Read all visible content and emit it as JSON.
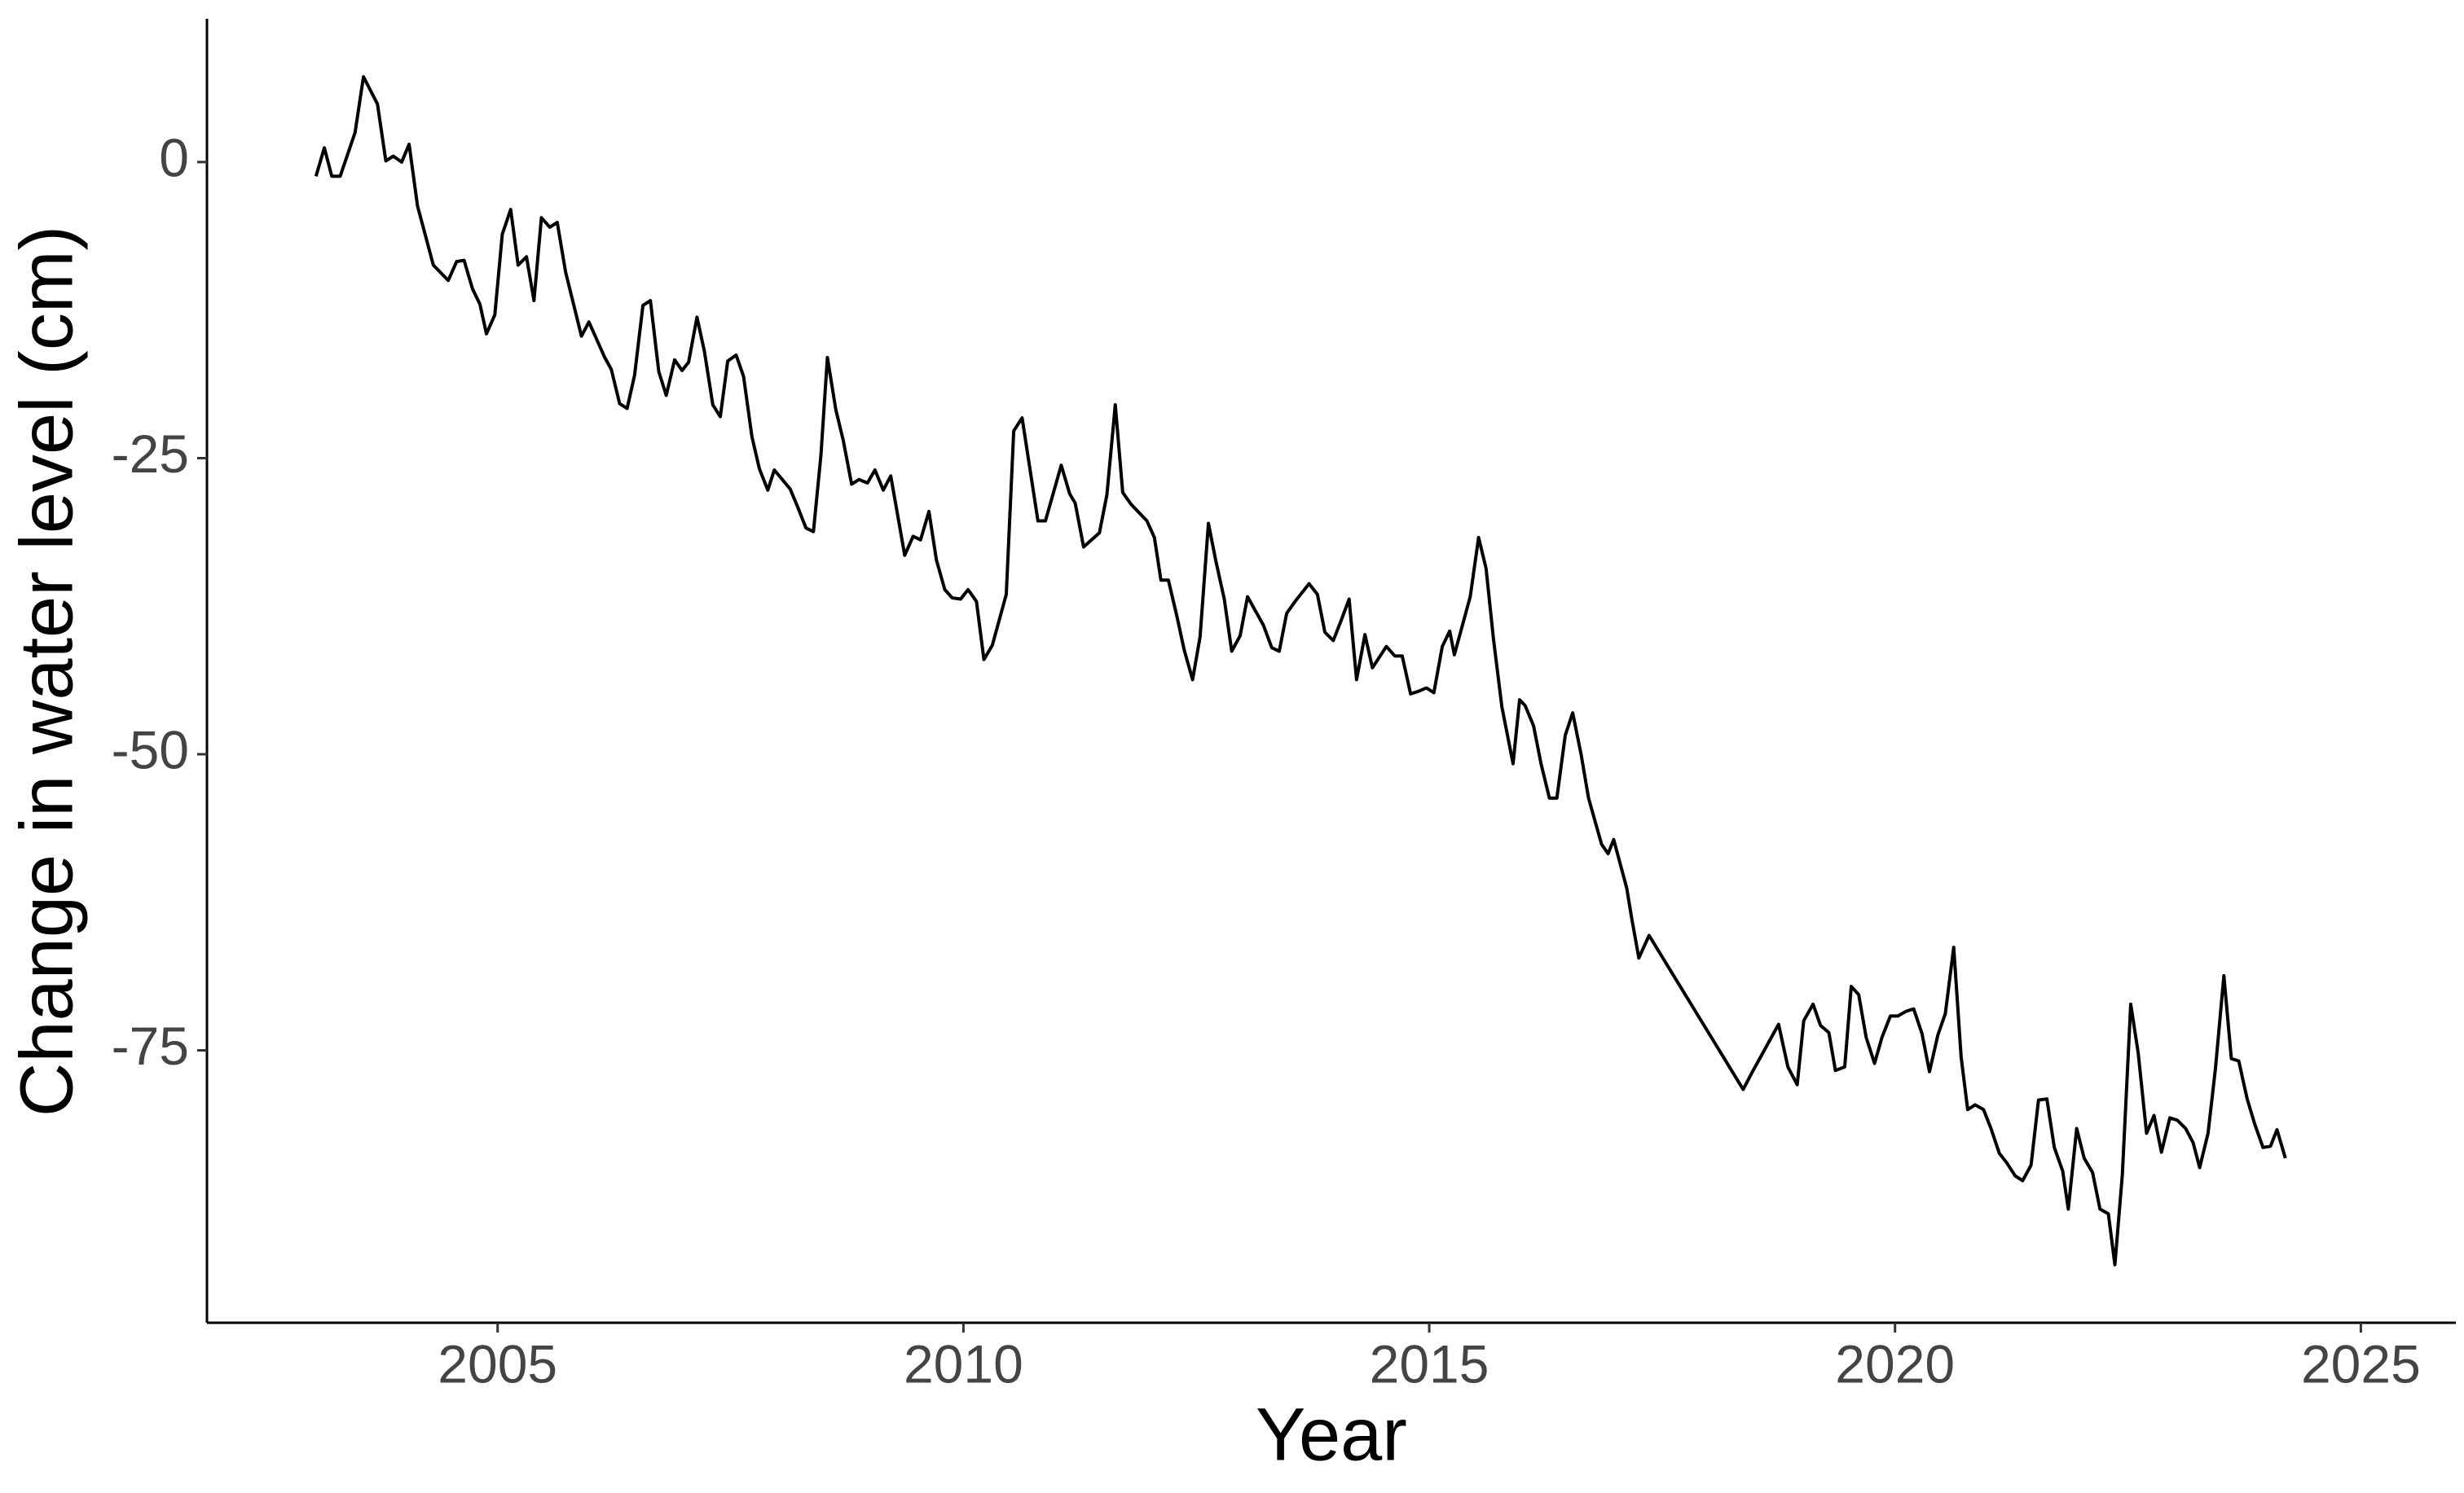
{
  "chart_data": {
    "type": "line",
    "xlabel": "Year",
    "ylabel": "Change in water level (cm)",
    "color": "#000000",
    "xlim": [
      2001.88,
      2026.02
    ],
    "ylim": [
      -98,
      12.1
    ],
    "xticks": [
      2005,
      2010,
      2015,
      2020,
      2025
    ],
    "yticks": [
      0,
      -25,
      -50,
      -75
    ],
    "grid": false,
    "x": [
      2003.05,
      2003.14,
      2003.22,
      2003.31,
      2003.47,
      2003.56,
      2003.71,
      2003.8,
      2003.88,
      2003.97,
      2004.05,
      2004.14,
      2004.31,
      2004.47,
      2004.56,
      2004.64,
      2004.73,
      2004.81,
      2004.88,
      2004.97,
      2005.05,
      2005.14,
      2005.22,
      2005.31,
      2005.39,
      2005.47,
      2005.56,
      2005.64,
      2005.73,
      2005.9,
      2005.98,
      2006.15,
      2006.22,
      2006.31,
      2006.39,
      2006.47,
      2006.56,
      2006.64,
      2006.73,
      2006.81,
      2006.9,
      2006.98,
      2007.05,
      2007.14,
      2007.22,
      2007.31,
      2007.39,
      2007.47,
      2007.56,
      2007.64,
      2007.73,
      2007.81,
      2007.9,
      2007.97,
      2008.14,
      2008.22,
      2008.31,
      2008.39,
      2008.47,
      2008.54,
      2008.63,
      2008.71,
      2008.8,
      2008.88,
      2008.97,
      2009.05,
      2009.14,
      2009.22,
      2009.37,
      2009.46,
      2009.54,
      2009.63,
      2009.71,
      2009.8,
      2009.88,
      2009.97,
      2010.05,
      2010.14,
      2010.22,
      2010.31,
      2010.46,
      2010.54,
      2010.63,
      2010.71,
      2010.8,
      2010.88,
      2011.05,
      2011.14,
      2011.2,
      2011.29,
      2011.46,
      2011.54,
      2011.63,
      2011.71,
      2011.8,
      2011.97,
      2012.05,
      2012.12,
      2012.2,
      2012.29,
      2012.37,
      2012.46,
      2012.54,
      2012.63,
      2012.71,
      2012.8,
      2012.88,
      2012.97,
      2013.05,
      2013.22,
      2013.31,
      2013.39,
      2013.47,
      2013.56,
      2013.71,
      2013.8,
      2013.88,
      2013.97,
      2014.05,
      2014.14,
      2014.22,
      2014.31,
      2014.39,
      2014.54,
      2014.63,
      2014.71,
      2014.8,
      2014.88,
      2014.97,
      2015.05,
      2015.14,
      2015.22,
      2015.27,
      2015.44,
      2015.53,
      2015.61,
      2015.69,
      2015.78,
      2015.9,
      2015.97,
      2016.03,
      2016.12,
      2016.2,
      2016.29,
      2016.37,
      2016.46,
      2016.54,
      2016.63,
      2016.71,
      2016.85,
      2016.92,
      2016.98,
      2017.12,
      2017.17,
      2017.25,
      2017.36,
      2018.37,
      2018.47,
      2018.75,
      2018.85,
      2018.95,
      2019.02,
      2019.12,
      2019.2,
      2019.29,
      2019.36,
      2019.46,
      2019.53,
      2019.61,
      2019.69,
      2019.78,
      2019.86,
      2019.95,
      2020.03,
      2020.12,
      2020.2,
      2020.29,
      2020.37,
      2020.46,
      2020.54,
      2020.63,
      2020.71,
      2020.78,
      2020.86,
      2020.95,
      2021.03,
      2021.12,
      2021.2,
      2021.29,
      2021.37,
      2021.46,
      2021.54,
      2021.63,
      2021.71,
      2021.8,
      2021.86,
      2021.95,
      2022.03,
      2022.12,
      2022.2,
      2022.29,
      2022.36,
      2022.44,
      2022.53,
      2022.61,
      2022.7,
      2022.78,
      2022.86,
      2022.95,
      2023.03,
      2023.12,
      2023.2,
      2023.27,
      2023.36,
      2023.44,
      2023.53,
      2023.61,
      2023.69,
      2023.78,
      2023.86,
      2023.95,
      2024.03,
      2024.1,
      2024.19
    ],
    "values": [
      -1.2,
      1.2,
      -1.2,
      -1.2,
      2.5,
      7.2,
      4.9,
      0.1,
      0.5,
      0,
      1.5,
      -3.7,
      -8.7,
      -10,
      -8.4,
      -8.3,
      -10.7,
      -12,
      -14.5,
      -12.9,
      -6.1,
      -4,
      -8.7,
      -8,
      -11.7,
      -4.7,
      -5.5,
      -5.1,
      -9.3,
      -14.7,
      -13.5,
      -16.5,
      -17.5,
      -20.4,
      -20.8,
      -18,
      -12.1,
      -11.7,
      -17.7,
      -19.7,
      -16.7,
      -17.6,
      -16.9,
      -13.1,
      -16,
      -20.5,
      -21.5,
      -16.8,
      -16.3,
      -18.1,
      -23.2,
      -25.9,
      -27.7,
      -26,
      -27.6,
      -29.1,
      -30.9,
      -31.2,
      -24.8,
      -16.5,
      -20.9,
      -23.5,
      -27.2,
      -26.8,
      -27.1,
      -26,
      -27.7,
      -26.5,
      -33.2,
      -31.6,
      -31.9,
      -29.5,
      -33.6,
      -36.1,
      -36.8,
      -36.9,
      -36.1,
      -37.1,
      -42,
      -40.8,
      -36.5,
      -22.7,
      -21.6,
      -25.7,
      -30.3,
      -30.3,
      -25.6,
      -28,
      -28.8,
      -32.5,
      -31.3,
      -28.1,
      -20.5,
      -27.9,
      -28.9,
      -30.3,
      -31.7,
      -35.3,
      -35.3,
      -38.3,
      -41.2,
      -43.7,
      -40.1,
      -30.5,
      -33.7,
      -36.9,
      -41.3,
      -40,
      -36.7,
      -39.1,
      -41,
      -41.3,
      -38.1,
      -37.1,
      -35.6,
      -36.5,
      -39.7,
      -40.4,
      -38.8,
      -36.9,
      -43.7,
      -39.9,
      -42.7,
      -40.9,
      -41.7,
      -41.7,
      -44.9,
      -44.7,
      -44.4,
      -44.8,
      -40.9,
      -39.6,
      -41.6,
      -36.7,
      -31.7,
      -34.3,
      -40.3,
      -46,
      -50.8,
      -45.4,
      -45.9,
      -47.6,
      -50.8,
      -53.7,
      -53.7,
      -48.4,
      -46.5,
      -50,
      -53.7,
      -57.6,
      -58.4,
      -57.2,
      -61.3,
      -63.7,
      -67.2,
      -65.3,
      -78.3,
      -76.8,
      -72.8,
      -76.4,
      -77.9,
      -72.5,
      -71.1,
      -72.9,
      -73.5,
      -76.7,
      -76.4,
      -69.6,
      -70.3,
      -73.9,
      -76.1,
      -73.9,
      -72.1,
      -72.1,
      -71.7,
      -71.5,
      -73.6,
      -76.8,
      -73.7,
      -71.9,
      -66.3,
      -75.6,
      -80,
      -79.6,
      -80,
      -81.6,
      -83.7,
      -84.5,
      -85.6,
      -86,
      -84.7,
      -79.2,
      -79.1,
      -83.2,
      -85.2,
      -88.4,
      -81.6,
      -84.1,
      -85.3,
      -88.4,
      -88.8,
      -93.1,
      -85.5,
      -71.1,
      -75.2,
      -82,
      -80.5,
      -83.6,
      -80.7,
      -80.9,
      -81.6,
      -82.8,
      -84.9,
      -82,
      -76.5,
      -68.7,
      -75.7,
      -75.9,
      -79.1,
      -81.2,
      -83.2,
      -83.1,
      -81.7,
      -84.1
    ]
  }
}
